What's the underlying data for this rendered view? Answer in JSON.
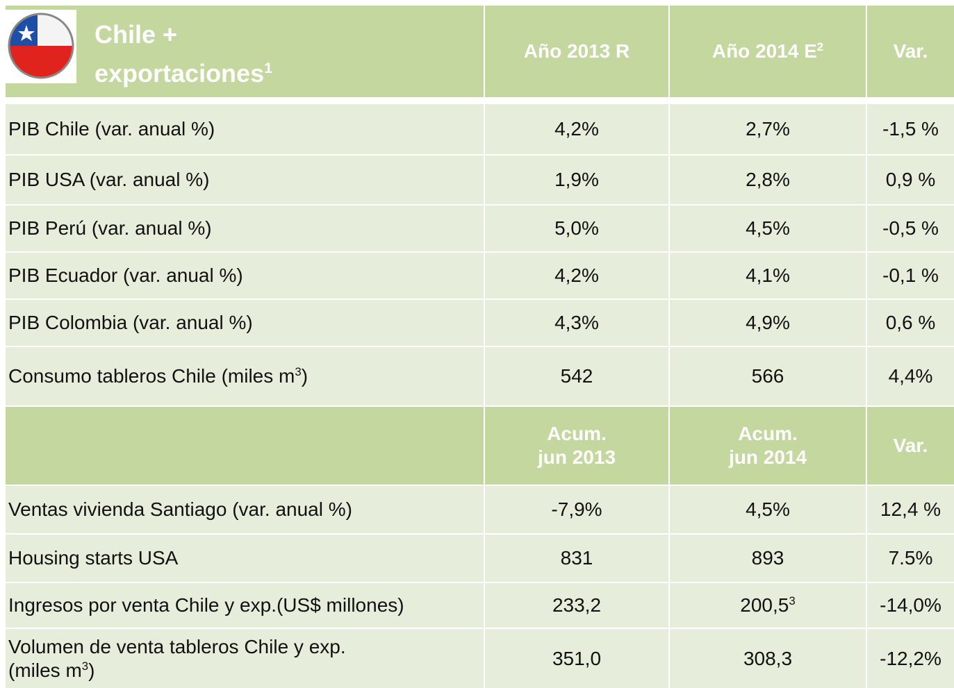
{
  "header": {
    "title": [
      "Chile +",
      "exportaciones"
    ],
    "title_sup": "1",
    "columns": [
      {
        "text": "Año 2013 R"
      },
      {
        "text": "Año 2014 E",
        "sup": "2"
      },
      {
        "text": "Var."
      }
    ]
  },
  "rows": [
    [
      "PIB  Chile (var. anual %)",
      "4,2%",
      "2,7%",
      "-1,5 %"
    ],
    [
      "PIB  USA (var. anual %)",
      "1,9%",
      "2,8%",
      "0,9 %"
    ],
    [
      "PIB  Perú (var. anual %)",
      "5,0%",
      "4,5%",
      "-0,5 %"
    ],
    [
      "PIB  Ecuador (var. anual %)",
      "4,2%",
      "4,1%",
      "-0,1 %"
    ],
    [
      "PIB  Colombia (var. anual %)",
      "4,3%",
      "4,9%",
      "0,6 %"
    ],
    [
      {
        "text": "Consumo  tableros  Chile (miles m",
        "sup": "3",
        "after": ")"
      },
      "542",
      "566",
      "4,4%"
    ]
  ],
  "section_header": {
    "columns": [
      {
        "text": "Acum.\njun 2013"
      },
      {
        "text": "Acum.\njun 2014"
      },
      {
        "text": "Var."
      }
    ]
  },
  "rows2": [
    [
      "Ventas vivienda Santiago (var. anual %)",
      "-7,9%",
      "4,5%",
      "12,4 %"
    ],
    [
      "Housing starts USA",
      "831",
      "893",
      "7.5%"
    ],
    [
      "Ingresos por venta Chile y exp.(US$ millones)",
      "233,2",
      {
        "text": "200,5",
        "sup": "3"
      },
      "-14,0%"
    ],
    [
      {
        "text": "Volumen de venta tableros Chile y exp.\n(miles m",
        "sup": "3",
        "after": ")"
      },
      "351,0",
      "308,3",
      "-12,2%"
    ]
  ]
}
